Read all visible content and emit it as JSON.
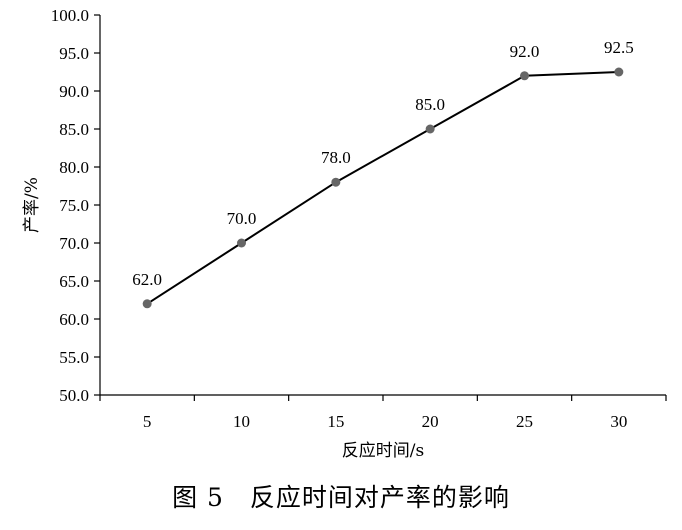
{
  "chart_data": {
    "type": "line",
    "x": [
      5,
      10,
      15,
      20,
      25,
      30
    ],
    "series": [
      {
        "values": [
          62.0,
          70.0,
          78.0,
          85.0,
          92.0,
          92.5
        ]
      }
    ],
    "x_tick_labels": [
      "5",
      "10",
      "15",
      "20",
      "25",
      "30"
    ],
    "y_tick_labels": [
      "50.0",
      "55.0",
      "60.0",
      "65.0",
      "70.0",
      "75.0",
      "80.0",
      "85.0",
      "90.0",
      "95.0",
      "100.0"
    ],
    "data_labels": [
      "62.0",
      "70.0",
      "78.0",
      "85.0",
      "92.0",
      "92.5"
    ],
    "xlabel": "反应时间/s",
    "ylabel": "产率/%",
    "ylim": [
      50,
      100
    ],
    "grid": false,
    "legend": "none",
    "line_color": "#000000",
    "marker_color": "#666666"
  },
  "caption": "图 5　反应时间对产率的影响"
}
